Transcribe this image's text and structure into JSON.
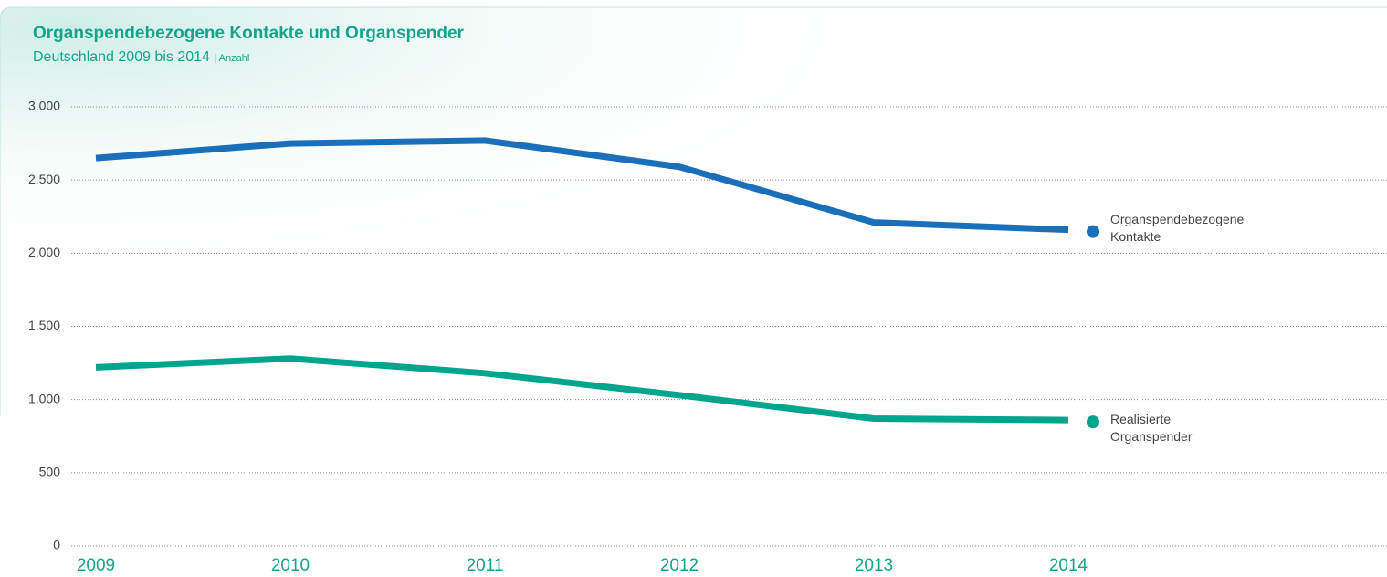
{
  "chart_data": {
    "type": "line",
    "title": "Organspendebezogene Kontakte und Organspender",
    "subtitle": "Deutschland 2009 bis 2014",
    "subtitle_note": "| Anzahl",
    "categories": [
      "2009",
      "2010",
      "2011",
      "2012",
      "2013",
      "2014"
    ],
    "series": [
      {
        "name": "Organspendebezogene Kontakte",
        "color": "#1a6fba",
        "values": [
          2650,
          2750,
          2770,
          2590,
          2210,
          2160
        ]
      },
      {
        "name": "Realisierte Organspender",
        "color": "#00a58e",
        "values": [
          1220,
          1280,
          1180,
          1030,
          870,
          860
        ]
      }
    ],
    "ylim": [
      0,
      3000
    ],
    "yticks": [
      0,
      500,
      {
        "value": 1000,
        "label": "1.000"
      },
      {
        "value": 1500,
        "label": "1.500"
      },
      {
        "value": 2000,
        "label": "2.000"
      },
      {
        "value": 2500,
        "label": "2.500"
      },
      {
        "value": 3000,
        "label": "3.000"
      }
    ],
    "grid": true
  }
}
